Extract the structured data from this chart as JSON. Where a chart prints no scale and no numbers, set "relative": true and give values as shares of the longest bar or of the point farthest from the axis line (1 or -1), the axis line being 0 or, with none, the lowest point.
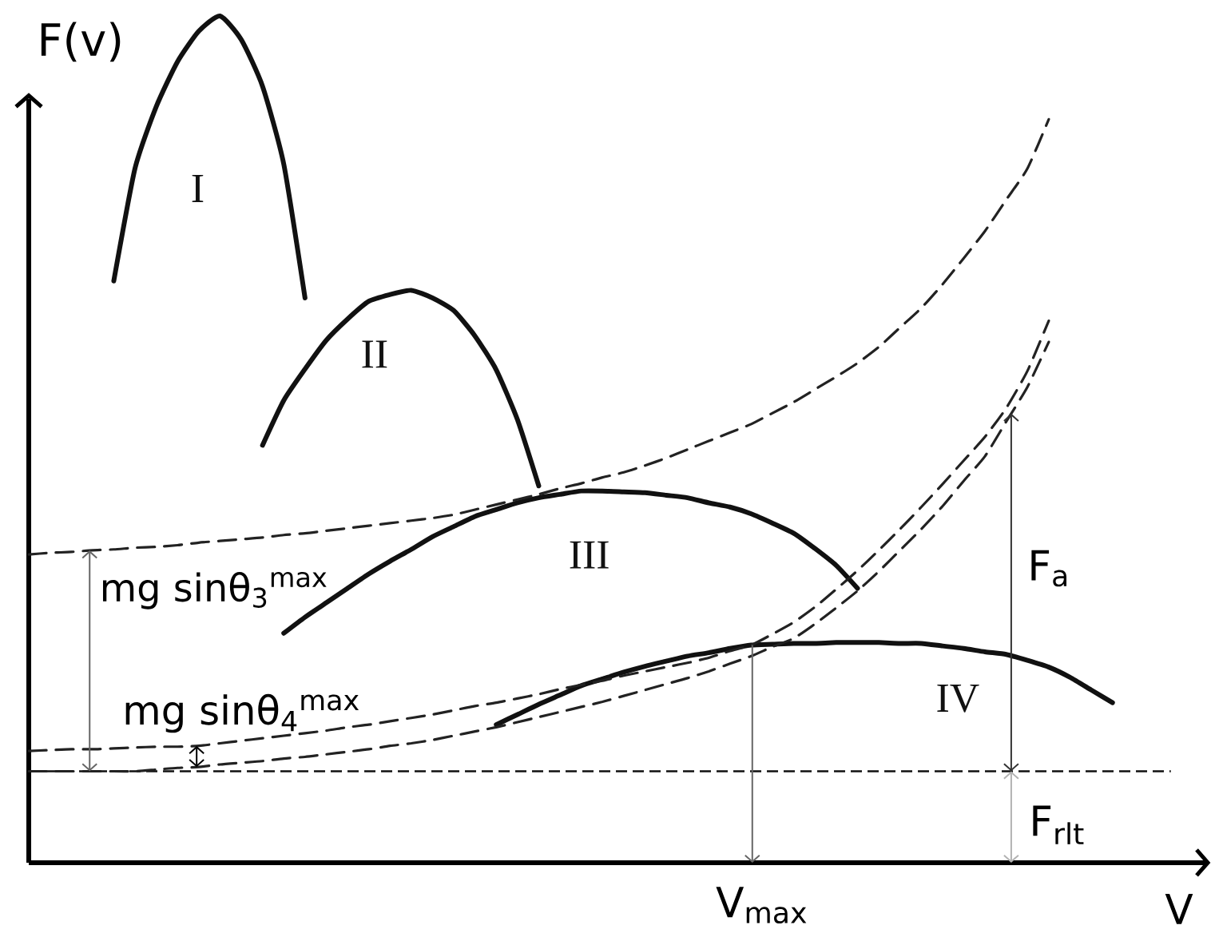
{
  "chart_data": {
    "type": "line",
    "relative": true,
    "xlabel": "V",
    "ylabel": "F(v)",
    "line_style": "solid",
    "categories": [
      null,
      null,
      null,
      null,
      null,
      null,
      null,
      null,
      null,
      null,
      null,
      null,
      null,
      null,
      null,
      null,
      null,
      null,
      null,
      null,
      null,
      null,
      null,
      null,
      null,
      null,
      null,
      null,
      null,
      null,
      null,
      null,
      null,
      null,
      null,
      null,
      null,
      null,
      null,
      null,
      null,
      null,
      null,
      null,
      null,
      null,
      null,
      null,
      null,
      null,
      null,
      null
    ],
    "series": [
      {
        "name": "I",
        "color": "#111111",
        "values": [
          null,
          null,
          null,
          null,
          0.687,
          0.82,
          0.893,
          0.946,
          0.982,
          1.0,
          0.972,
          0.917,
          0.825,
          0.667,
          null,
          null,
          null,
          null,
          null,
          null,
          null,
          null,
          null,
          null,
          null,
          null,
          null,
          null,
          null,
          null,
          null,
          null,
          null,
          null,
          null,
          null,
          null,
          null,
          null,
          null,
          null,
          null,
          null,
          null,
          null,
          null,
          null,
          null,
          null,
          null,
          null,
          null
        ]
      },
      {
        "name": "II",
        "color": "#111111",
        "values": [
          null,
          null,
          null,
          null,
          null,
          null,
          null,
          null,
          null,
          null,
          null,
          0.493,
          0.546,
          0.583,
          0.617,
          0.642,
          0.663,
          0.671,
          0.676,
          0.667,
          0.652,
          0.622,
          0.582,
          0.523,
          0.445,
          null,
          null,
          null,
          null,
          null,
          null,
          null,
          null,
          null,
          null,
          null,
          null,
          null,
          null,
          null,
          null,
          null,
          null,
          null,
          null,
          null,
          null,
          null,
          null,
          null,
          null,
          null
        ]
      },
      {
        "name": "III",
        "color": "#111111",
        "values": [
          null,
          null,
          null,
          null,
          null,
          null,
          null,
          null,
          null,
          null,
          null,
          null,
          0.271,
          0.29,
          0.307,
          0.324,
          0.341,
          0.356,
          0.37,
          0.385,
          0.397,
          0.409,
          0.417,
          0.425,
          0.431,
          0.435,
          0.439,
          0.439,
          0.438,
          0.437,
          0.434,
          0.431,
          0.425,
          0.42,
          0.412,
          0.401,
          0.389,
          0.371,
          0.351,
          0.324,
          null,
          null,
          null,
          null,
          null,
          null,
          null,
          null,
          null,
          null,
          null,
          null
        ]
      },
      {
        "name": "IV",
        "color": "#111111",
        "values": [
          null,
          null,
          null,
          null,
          null,
          null,
          null,
          null,
          null,
          null,
          null,
          null,
          null,
          null,
          null,
          null,
          null,
          null,
          null,
          null,
          null,
          null,
          0.163,
          0.175,
          0.187,
          0.198,
          0.209,
          0.217,
          0.225,
          0.232,
          0.238,
          0.244,
          0.248,
          0.253,
          0.257,
          0.258,
          0.259,
          0.259,
          0.26,
          0.26,
          0.26,
          0.259,
          0.259,
          0.256,
          0.253,
          0.249,
          0.246,
          0.239,
          0.231,
          0.219,
          0.204,
          0.189
        ]
      },
      {
        "color": "#222222",
        "line_style": "dashed",
        "values": [
          0.364,
          0.366,
          0.367,
          0.369,
          0.37,
          0.372,
          0.373,
          0.375,
          0.378,
          0.38,
          0.382,
          0.384,
          0.387,
          0.389,
          0.392,
          0.395,
          0.398,
          0.401,
          0.404,
          0.407,
          0.411,
          0.417,
          0.423,
          0.429,
          0.435,
          0.442,
          0.448,
          0.455,
          0.461,
          0.469,
          0.478,
          0.488,
          0.498,
          0.508,
          0.518,
          0.531,
          0.544,
          0.559,
          0.574,
          0.59,
          0.609,
          0.632,
          0.655,
          0.683,
          0.714,
          0.746,
          0.783,
          0.82,
          0.878,
          null,
          null,
          null
        ]
      },
      {
        "color": "#222222",
        "line_style": "dashed",
        "values": [
          0.132,
          0.133,
          0.134,
          0.134,
          0.135,
          0.136,
          0.137,
          0.137,
          0.138,
          0.141,
          0.144,
          0.147,
          0.15,
          0.153,
          0.156,
          0.16,
          0.163,
          0.167,
          0.171,
          0.175,
          0.18,
          0.185,
          0.189,
          0.194,
          0.199,
          0.205,
          0.21,
          0.215,
          0.221,
          0.226,
          0.231,
          0.236,
          0.242,
          0.25,
          0.257,
          0.27,
          0.284,
          0.302,
          0.323,
          0.345,
          0.369,
          0.394,
          0.42,
          0.447,
          0.475,
          0.503,
          0.537,
          0.581,
          0.64,
          null,
          null,
          null
        ]
      },
      {
        "color": "#222222",
        "line_style": "dashed",
        "values": [
          0.108,
          0.108,
          0.108,
          0.108,
          0.108,
          0.108,
          0.11,
          0.112,
          0.113,
          0.116,
          0.118,
          0.12,
          0.123,
          0.125,
          0.128,
          0.131,
          0.134,
          0.138,
          0.141,
          0.145,
          0.15,
          0.155,
          0.16,
          0.166,
          0.172,
          0.178,
          0.184,
          0.19,
          0.197,
          0.204,
          0.211,
          0.218,
          0.226,
          0.235,
          0.244,
          0.255,
          0.265,
          0.282,
          0.301,
          0.321,
          0.344,
          0.369,
          0.394,
          0.421,
          0.451,
          0.48,
          0.521,
          0.562,
          0.615,
          null,
          null,
          null
        ]
      }
    ],
    "ref_lines": [
      {
        "axis": "y",
        "value": 0.108,
        "line_style": "dashed"
      }
    ],
    "annotations": [
      "mg sinθ$_{3}$$^{max}$",
      "mg sinθ$_{4}$$^{max}$",
      "F$_{a}$",
      "F$_{rlt}$",
      "V$_{max}$"
    ]
  }
}
